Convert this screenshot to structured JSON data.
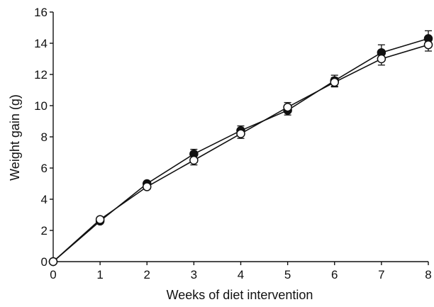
{
  "chart_data": {
    "type": "line",
    "xlabel": "Weeks of diet intervention",
    "ylabel": "Weight gain (g)",
    "xlim": [
      0,
      8
    ],
    "ylim": [
      0,
      16
    ],
    "xticks": [
      0,
      1,
      2,
      3,
      4,
      5,
      6,
      7,
      8
    ],
    "yticks": [
      0,
      2,
      4,
      6,
      8,
      10,
      12,
      14,
      16
    ],
    "grid": false,
    "x": [
      0,
      1,
      2,
      3,
      4,
      5,
      6,
      7,
      8
    ],
    "series": [
      {
        "marker": "filled-circle",
        "color": "#111111",
        "values": [
          0,
          2.6,
          5.0,
          6.9,
          8.4,
          9.7,
          11.6,
          13.4,
          14.3
        ],
        "error": [
          0,
          0.1,
          0.15,
          0.3,
          0.3,
          0.3,
          0.35,
          0.5,
          0.5
        ]
      },
      {
        "marker": "open-circle",
        "color": "#111111",
        "values": [
          0,
          2.7,
          4.8,
          6.5,
          8.2,
          9.9,
          11.5,
          13.0,
          13.9
        ],
        "error": [
          0,
          0.1,
          0.15,
          0.3,
          0.3,
          0.3,
          0.3,
          0.4,
          0.4
        ]
      }
    ]
  }
}
